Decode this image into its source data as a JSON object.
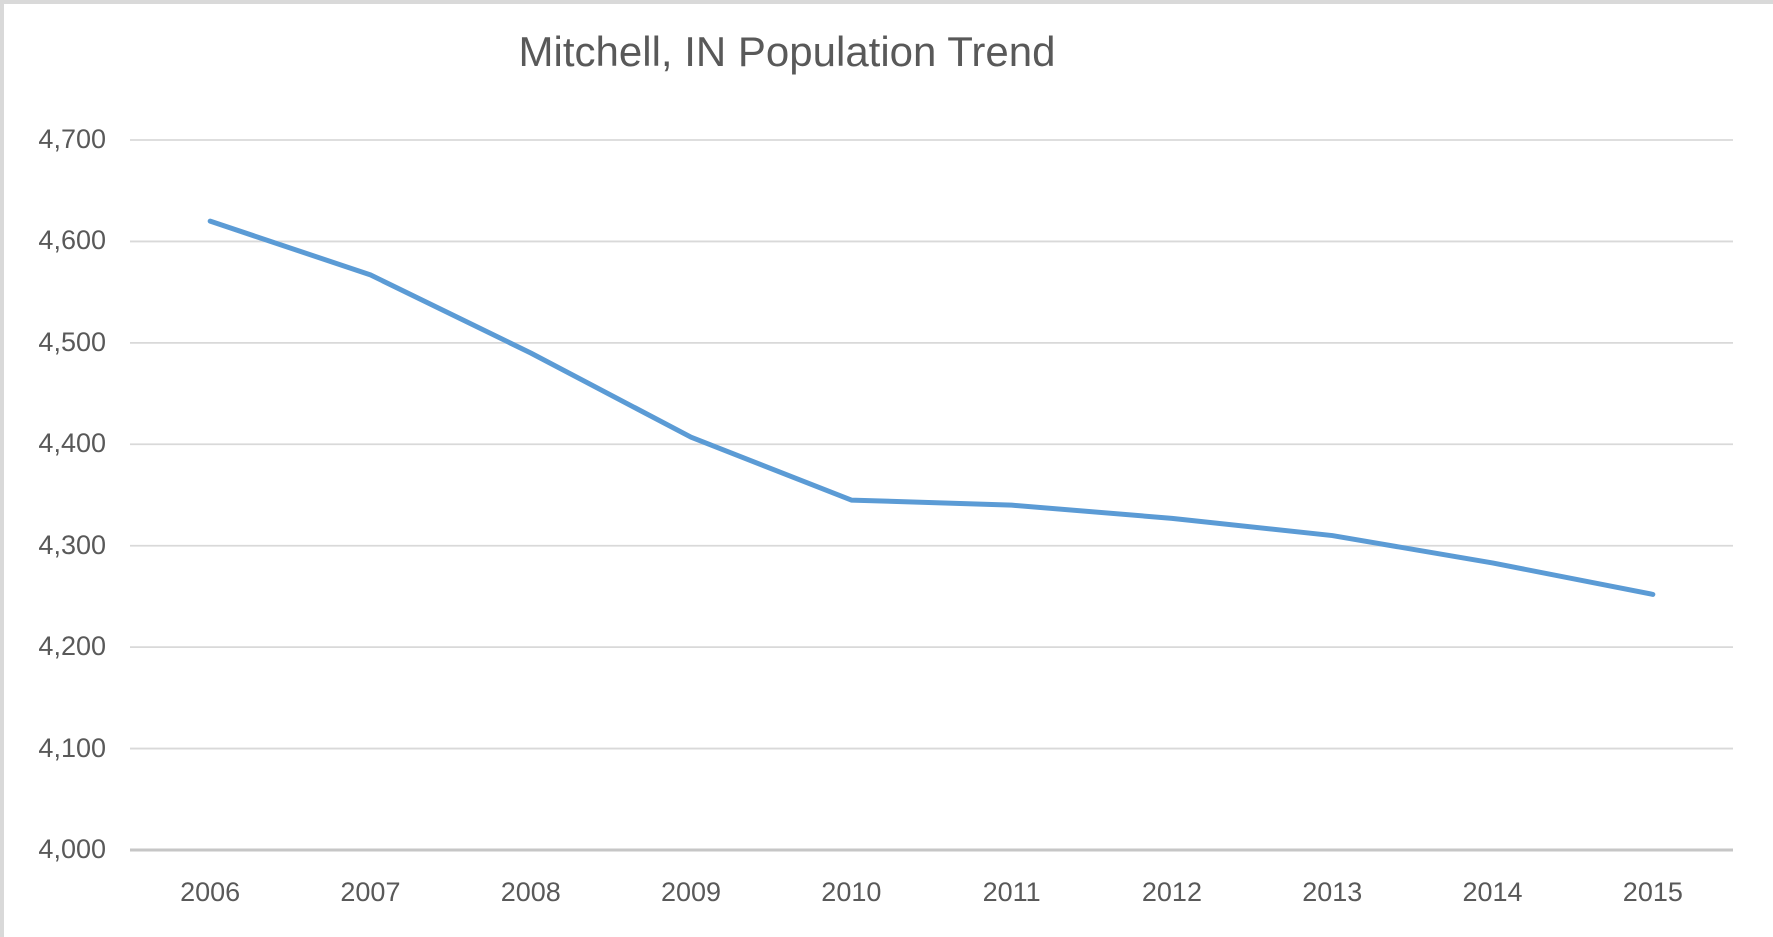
{
  "frame": {
    "background": "#ffffff",
    "border_color": "#d9d9d9"
  },
  "chart_data": {
    "type": "line",
    "title": "Mitchell, IN Population Trend",
    "categories": [
      "2006",
      "2007",
      "2008",
      "2009",
      "2010",
      "2011",
      "2012",
      "2013",
      "2014",
      "2015"
    ],
    "values": [
      4620,
      4567,
      4490,
      4407,
      4345,
      4340,
      4327,
      4310,
      4283,
      4252
    ],
    "xlabel": "",
    "ylabel": "",
    "ylim": [
      4000,
      4700
    ],
    "ytick_step": 100,
    "ytick_labels": [
      "4,000",
      "4,100",
      "4,200",
      "4,300",
      "4,400",
      "4,500",
      "4,600",
      "4,700"
    ],
    "grid": "horizontal",
    "legend": "none",
    "styles": {
      "line_color": "#5b9bd5",
      "line_width": 5,
      "gridline_color": "#d9d9d9",
      "axis_line_color": "#c6c6c6",
      "text_color": "#595959",
      "title_color": "#595959"
    }
  }
}
